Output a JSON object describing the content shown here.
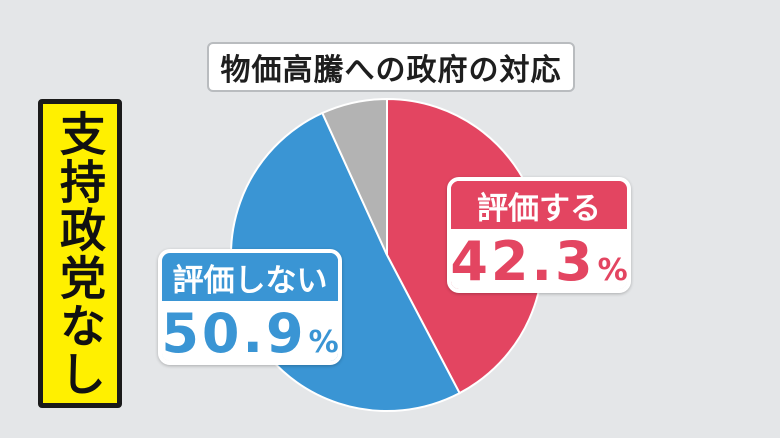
{
  "chart_data": {
    "type": "pie",
    "title": "物価高騰への政府の対応",
    "group_label": "支持政党なし",
    "slices": [
      {
        "label": "評価する",
        "value": 42.3,
        "color": "#e34561"
      },
      {
        "label": "評価しない",
        "value": 50.9,
        "color": "#3a95d4"
      },
      {
        "label": "",
        "value": 6.8,
        "color": "#b3b3b3"
      }
    ],
    "percent_sign": "%"
  }
}
